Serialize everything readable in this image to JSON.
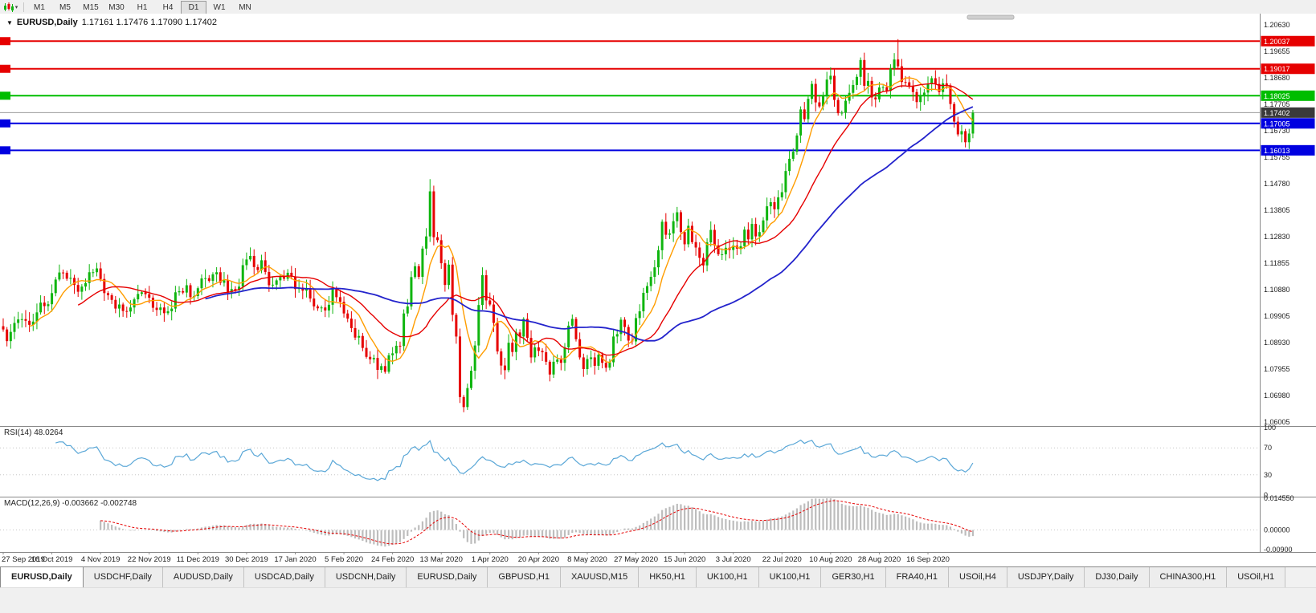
{
  "toolbar": {
    "timeframes": [
      "M1",
      "M5",
      "M15",
      "M30",
      "H1",
      "H4",
      "D1",
      "W1",
      "MN"
    ],
    "active_timeframe": "D1"
  },
  "chart": {
    "symbol_label": "EURUSD,Daily",
    "ohlc": "1.17161 1.17476 1.17090 1.17402",
    "expand_icon": "▼"
  },
  "price_axis": {
    "labels": [
      "1.20630",
      "1.19655",
      "1.18680",
      "1.17705",
      "1.16730",
      "1.15755",
      "1.14780",
      "1.13805",
      "1.12830",
      "1.11855",
      "1.10880",
      "1.09905",
      "1.08930",
      "1.07955",
      "1.06980",
      "1.06005"
    ],
    "current_price": "1.17402",
    "current_price_value": 1.17402
  },
  "hlines": [
    {
      "value": 1.20037,
      "label": "1.20037",
      "color": "#e60000"
    },
    {
      "value": 1.19017,
      "label": "1.19017",
      "color": "#e60000"
    },
    {
      "value": 1.18025,
      "label": "1.18025",
      "color": "#00bd00"
    },
    {
      "value": 1.17005,
      "label": "1.17005",
      "color": "#0000e0"
    },
    {
      "value": 1.16013,
      "label": "1.16013",
      "color": "#0000e0"
    }
  ],
  "rsi_pane": {
    "label": "RSI(14) 48.0264",
    "axis_labels": [
      "100",
      "70",
      "30",
      "0"
    ],
    "levels": [
      70,
      30
    ],
    "line_color": "#5aa7d7"
  },
  "macd_pane": {
    "label": "MACD(12,26,9) -0.003662 -0.002748",
    "axis_labels": [
      "0.014550",
      "0.00000",
      "-0.00900"
    ],
    "range": [
      -0.009,
      0.01455
    ],
    "histogram_color": "#bdbdbd",
    "signal_color": "#e60000"
  },
  "x_axis": {
    "labels": [
      "27 Sep 2019",
      "16 Oct 2019",
      "4 Nov 2019",
      "22 Nov 2019",
      "11 Dec 2019",
      "30 Dec 2019",
      "17 Jan 2020",
      "5 Feb 2020",
      "24 Feb 2020",
      "13 Mar 2020",
      "1 Apr 2020",
      "20 Apr 2020",
      "8 May 2020",
      "27 May 2020",
      "15 Jun 2020",
      "3 Jul 2020",
      "22 Jul 2020",
      "10 Aug 2020",
      "28 Aug 2020",
      "16 Sep 2020"
    ],
    "label_every_n_bars": 13
  },
  "chart_data": {
    "type": "candlestick",
    "symbol": "EURUSD",
    "period": "Daily",
    "ylim": [
      1.0585,
      1.2105
    ],
    "up_color": "#0fb50f",
    "down_color": "#e60000",
    "closes": [
      1.0941,
      1.0898,
      1.0932,
      1.0965,
      1.0978,
      1.0979,
      1.0973,
      1.0958,
      1.097,
      1.1004,
      1.104,
      1.1027,
      1.1034,
      1.1075,
      1.1125,
      1.1151,
      1.115,
      1.1128,
      1.1131,
      1.1105,
      1.108,
      1.1099,
      1.1112,
      1.1152,
      1.1152,
      1.1166,
      1.1127,
      1.1075,
      1.1067,
      1.105,
      1.1018,
      1.1033,
      1.1009,
      1.1007,
      1.1022,
      1.1052,
      1.1072,
      1.1078,
      1.1071,
      1.1058,
      1.1021,
      1.1013,
      1.1022,
      1.1001,
      1.1008,
      1.1018,
      1.1078,
      1.1082,
      1.1077,
      1.1104,
      1.106,
      1.1064,
      1.1093,
      1.1129,
      1.113,
      1.112,
      1.1144,
      1.1152,
      1.1113,
      1.1122,
      1.1078,
      1.109,
      1.1086,
      1.1099,
      1.1178,
      1.1199,
      1.1212,
      1.1171,
      1.116,
      1.1196,
      1.1153,
      1.1104,
      1.1106,
      1.1122,
      1.1134,
      1.1128,
      1.115,
      1.1136,
      1.109,
      1.1095,
      1.1084,
      1.1093,
      1.1055,
      1.1026,
      1.1019,
      1.1022,
      1.1011,
      1.1032,
      1.1093,
      1.106,
      1.1043,
      1.1,
      1.0981,
      1.0946,
      1.0911,
      1.0917,
      1.0873,
      1.084,
      1.0831,
      1.0836,
      1.0792,
      1.0806,
      1.0785,
      1.0846,
      1.0853,
      1.0881,
      1.088,
      1.1,
      1.1026,
      1.1134,
      1.1174,
      1.1135,
      1.1239,
      1.1284,
      1.145,
      1.1281,
      1.127,
      1.1185,
      1.1105,
      1.118,
      1.0995,
      1.0915,
      1.0692,
      1.0655,
      1.0725,
      1.0789,
      1.0882,
      1.1031,
      1.1141,
      1.1048,
      1.1033,
      1.0965,
      1.086,
      1.0808,
      1.0791,
      1.0892,
      1.0858,
      1.093,
      1.0915,
      1.098,
      1.091,
      1.0838,
      1.0875,
      1.0862,
      1.0857,
      1.0822,
      1.0775,
      1.0822,
      1.083,
      1.0818,
      1.0875,
      1.0955,
      1.098,
      1.0905,
      1.0838,
      1.0795,
      1.0832,
      1.0838,
      1.0807,
      1.0848,
      1.0818,
      1.08,
      1.082,
      1.0915,
      1.0924,
      1.0977,
      1.095,
      1.09,
      1.0897,
      1.0983,
      1.1008,
      1.1076,
      1.1101,
      1.1135,
      1.117,
      1.1233,
      1.1338,
      1.129,
      1.1295,
      1.134,
      1.1373,
      1.13,
      1.1255,
      1.1323,
      1.1263,
      1.1243,
      1.1205,
      1.1177,
      1.1262,
      1.1308,
      1.1251,
      1.1218,
      1.1218,
      1.1242,
      1.1234,
      1.125,
      1.1239,
      1.1248,
      1.1309,
      1.1273,
      1.133,
      1.1284,
      1.13,
      1.1343,
      1.1395,
      1.141,
      1.1384,
      1.1428,
      1.1447,
      1.1525,
      1.157,
      1.1596,
      1.1656,
      1.1752,
      1.1716,
      1.1791,
      1.1846,
      1.1778,
      1.1763,
      1.1803,
      1.1862,
      1.1876,
      1.1787,
      1.1738,
      1.174,
      1.1784,
      1.1813,
      1.1842,
      1.1872,
      1.1934,
      1.1839,
      1.1857,
      1.1796,
      1.1789,
      1.1833,
      1.1834,
      1.182,
      1.1903,
      1.1936,
      1.1911,
      1.1853,
      1.1852,
      1.1838,
      1.1816,
      1.1779,
      1.1801,
      1.1814,
      1.1845,
      1.1867,
      1.1846,
      1.1816,
      1.1848,
      1.184,
      1.1772,
      1.1707,
      1.166,
      1.1672,
      1.1631,
      1.1663,
      1.174
    ],
    "wick_overrides": {
      "102": {
        "low": 1.0778
      },
      "114": {
        "high": 1.1495
      },
      "122": {
        "low": 1.067
      },
      "123": {
        "low": 1.0636
      },
      "239": {
        "high": 1.2011
      },
      "257": {
        "low": 1.1612
      }
    },
    "moving_averages": [
      {
        "period": 8,
        "color": "#ff9d00"
      },
      {
        "period": 21,
        "color": "#e60000"
      },
      {
        "period": 55,
        "color": "#2323cc"
      }
    ],
    "indicators": [
      {
        "name": "RSI",
        "period": 14,
        "value": 48.0264
      },
      {
        "name": "MACD",
        "fast": 12,
        "slow": 26,
        "signal_period": 9,
        "value": -0.003662,
        "signal_value": -0.002748
      }
    ]
  },
  "tabs": {
    "items": [
      {
        "label": "EURUSD,Daily",
        "active": true
      },
      {
        "label": "USDCHF,Daily"
      },
      {
        "label": "AUDUSD,Daily"
      },
      {
        "label": "USDCAD,Daily"
      },
      {
        "label": "USDCNH,Daily"
      },
      {
        "label": "EURUSD,Daily"
      },
      {
        "label": "GBPUSD,H1"
      },
      {
        "label": "XAUUSD,M15"
      },
      {
        "label": "HK50,H1"
      },
      {
        "label": "UK100,H1"
      },
      {
        "label": "UK100,H1"
      },
      {
        "label": "GER30,H1"
      },
      {
        "label": "FRA40,H1"
      },
      {
        "label": "USOil,H4"
      },
      {
        "label": "USDJPY,Daily"
      },
      {
        "label": "DJ30,Daily"
      },
      {
        "label": "CHINA300,H1"
      },
      {
        "label": "USOil,H1"
      }
    ]
  }
}
